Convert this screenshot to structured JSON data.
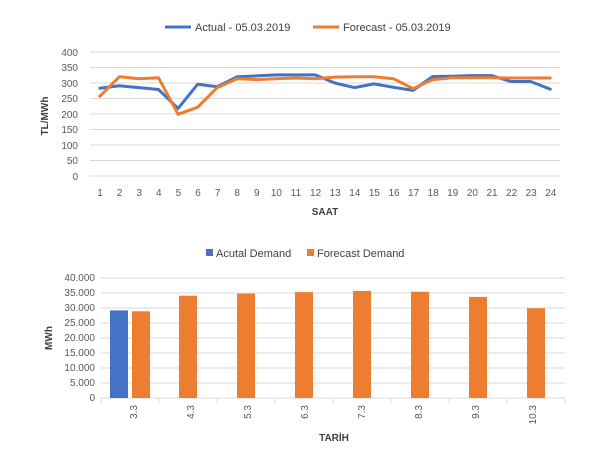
{
  "colors": {
    "actual": "#4472C4",
    "forecast": "#ED7D31",
    "grid": "#D9D9D9",
    "text": "#595959"
  },
  "chart_data": [
    {
      "type": "line",
      "legend": [
        "Actual - 05.03.2019",
        "Forecast - 05.03.2019"
      ],
      "xlabel": "SAAT",
      "ylabel": "TL/MWh",
      "x": [
        "1",
        "2",
        "3",
        "4",
        "5",
        "6",
        "7",
        "8",
        "9",
        "10",
        "11",
        "12",
        "13",
        "14",
        "15",
        "16",
        "17",
        "18",
        "19",
        "20",
        "21",
        "22",
        "23",
        "24"
      ],
      "yticks": [
        "0",
        "50",
        "100",
        "150",
        "200",
        "250",
        "300",
        "350",
        "400"
      ],
      "ylim": [
        0,
        400
      ],
      "series": [
        {
          "name": "Actual - 05.03.2019",
          "values": [
            283,
            291,
            285,
            279,
            218,
            296,
            288,
            320,
            323,
            326,
            326,
            326,
            300,
            285,
            297,
            286,
            276,
            321,
            322,
            324,
            324,
            305,
            305,
            280
          ]
        },
        {
          "name": "Forecast - 05.03.2019",
          "values": [
            257,
            320,
            314,
            317,
            199,
            222,
            285,
            314,
            311,
            314,
            316,
            314,
            319,
            320,
            320,
            314,
            282,
            311,
            317,
            317,
            317,
            316,
            316,
            316
          ]
        }
      ]
    },
    {
      "type": "bar",
      "legend": [
        "Acutal Demand",
        "Forecast Demand"
      ],
      "xlabel": "TARİH",
      "ylabel": "MWh",
      "categories": [
        "3.3",
        "4.3",
        "5.3",
        "6.3",
        "7.3",
        "8.3",
        "9.3",
        "10.3"
      ],
      "yticks": [
        "0",
        "5.000",
        "10.000",
        "15.000",
        "20.000",
        "25.000",
        "30.000",
        "35.000",
        "40.000"
      ],
      "ylim": [
        0,
        40000
      ],
      "series": [
        {
          "name": "Acutal Demand",
          "values": [
            29200,
            null,
            null,
            null,
            null,
            null,
            null,
            null
          ]
        },
        {
          "name": "Forecast Demand",
          "values": [
            28900,
            34100,
            34800,
            35300,
            35700,
            35400,
            33700,
            29900
          ]
        }
      ]
    }
  ]
}
